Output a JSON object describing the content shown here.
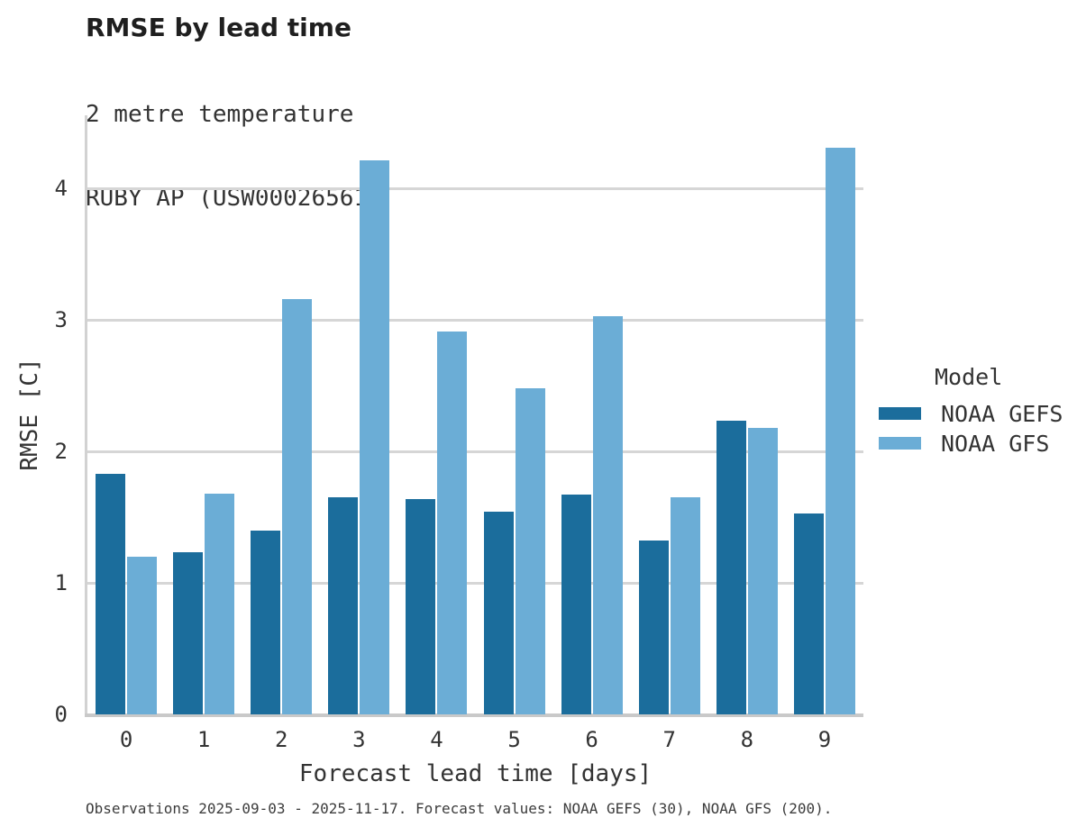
{
  "header": {
    "title": "RMSE by lead time",
    "subtitle_line1": "2 metre temperature",
    "subtitle_line2": "RUBY AP (USW00026561)"
  },
  "legend": {
    "title": "Model",
    "entries": [
      "NOAA GEFS",
      "NOAA GFS"
    ]
  },
  "footnote": "Observations 2025-09-03 - 2025-11-17. Forecast values: NOAA GEFS (30), NOAA GFS (200).",
  "colors": {
    "noaa_gefs": "#1b6d9c",
    "noaa_gfs": "#6badd6",
    "gridline": "#d6d6d6",
    "axis": "#c9c9c9",
    "text": "#333333"
  },
  "chart_data": {
    "type": "bar",
    "title": "RMSE by lead time",
    "subtitle": [
      "2 metre temperature",
      "RUBY AP (USW00026561)"
    ],
    "xlabel": "Forecast lead time [days]",
    "ylabel": "RMSE [C]",
    "categories": [
      "0",
      "1",
      "2",
      "3",
      "4",
      "5",
      "6",
      "7",
      "8",
      "9"
    ],
    "yticks": [
      0,
      1,
      2,
      3,
      4
    ],
    "ylim": [
      0,
      4.555
    ],
    "grid": "horizontal gridlines on, at integer y values",
    "legend_position": "right",
    "legend_title": "Model",
    "series": [
      {
        "name": "NOAA GEFS",
        "color": "#1b6d9c",
        "values": [
          1.83,
          1.23,
          1.4,
          1.65,
          1.64,
          1.54,
          1.67,
          1.32,
          2.23,
          1.53
        ]
      },
      {
        "name": "NOAA GFS",
        "color": "#6badd6",
        "values": [
          1.2,
          1.68,
          3.16,
          4.21,
          2.91,
          2.48,
          3.03,
          1.65,
          2.18,
          4.31
        ]
      }
    ],
    "caption": "Observations 2025-09-03 - 2025-11-17. Forecast values: NOAA GEFS (30), NOAA GFS (200)."
  }
}
